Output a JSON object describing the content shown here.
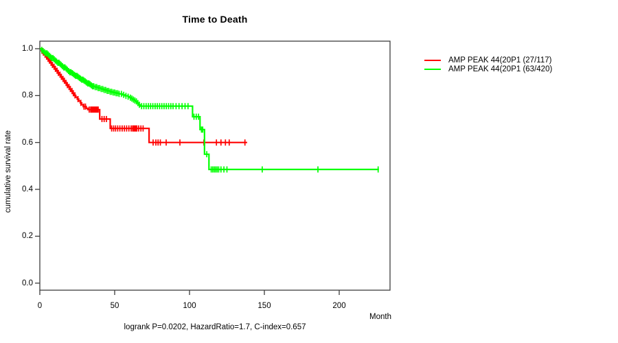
{
  "title": "Time to Death",
  "caption": "logrank P=0.0202, HazardRatio=1.7, C-index=0.657",
  "axes": {
    "x_label": "Month",
    "y_label": "cumulative survival rate",
    "x_ticks": [
      "0",
      "50",
      "100",
      "150",
      "200"
    ],
    "y_ticks": [
      "0.0",
      "0.2",
      "0.4",
      "0.6",
      "0.8",
      "1.0"
    ]
  },
  "legend": [
    {
      "label": "AMP PEAK 44(20P1 (27/117)",
      "color": "#FF0000"
    },
    {
      "label": "AMP PEAK 44(20P1 (63/420)",
      "color": "#00FF00"
    }
  ],
  "colors": {
    "red_curve": "#FF0000",
    "green_curve": "#00FF00",
    "axis": "#3c3c3c",
    "text": "#000000",
    "background": "#FFFFFF"
  },
  "chart_data": {
    "type": "line",
    "subtype": "kaplan-meier-step",
    "title": "Time to Death",
    "xlabel": "Month",
    "ylabel": "cumulative survival rate",
    "xlim": [
      0,
      234
    ],
    "ylim": [
      0,
      1.03
    ],
    "grid": false,
    "legend_position": "right-outside",
    "series": [
      {
        "name": "AMP PEAK 44(20P1 (27/117)",
        "color": "#FF0000",
        "end_month": 138.5,
        "steps": [
          [
            0,
            1.0
          ],
          [
            1,
            0.991
          ],
          [
            2,
            0.983
          ],
          [
            3,
            0.974
          ],
          [
            4,
            0.966
          ],
          [
            5,
            0.957
          ],
          [
            6,
            0.949
          ],
          [
            7,
            0.94
          ],
          [
            8,
            0.931
          ],
          [
            9,
            0.923
          ],
          [
            10,
            0.914
          ],
          [
            11,
            0.906
          ],
          [
            12,
            0.897
          ],
          [
            13,
            0.889
          ],
          [
            14,
            0.88
          ],
          [
            15,
            0.871
          ],
          [
            16,
            0.863
          ],
          [
            17,
            0.854
          ],
          [
            18,
            0.845
          ],
          [
            19,
            0.837
          ],
          [
            20,
            0.828
          ],
          [
            21,
            0.819
          ],
          [
            22,
            0.81
          ],
          [
            23,
            0.801
          ],
          [
            24,
            0.793
          ],
          [
            25,
            0.785
          ],
          [
            26,
            0.777
          ],
          [
            27,
            0.769
          ],
          [
            28,
            0.761
          ],
          [
            29,
            0.753
          ],
          [
            31,
            0.746
          ],
          [
            32,
            0.74
          ],
          [
            40,
            0.7
          ],
          [
            47,
            0.66
          ],
          [
            73,
            0.6
          ]
        ],
        "censor_months": [
          1.4,
          2.4,
          3.5,
          4.5,
          5.5,
          6.4,
          7.5,
          8.4,
          9.5,
          10.4,
          11.5,
          12.4,
          13.5,
          14.4,
          15.5,
          16.4,
          17.5,
          18.4,
          19.5,
          20.4,
          21.5,
          22.4,
          23.5,
          25.5,
          27.4,
          29.5,
          30.5,
          33,
          34,
          34.7,
          35.4,
          36.1,
          36.8,
          37.5,
          38.3,
          39,
          41.5,
          43,
          44.5,
          48,
          49.3,
          50.6,
          52,
          53.5,
          55,
          56.5,
          58,
          59.5,
          61,
          62,
          62.7,
          63.4,
          64.1,
          64.8,
          66,
          67.5,
          69,
          75.7,
          77.5,
          79,
          80.5,
          84.4,
          93.6,
          109.6,
          118,
          121,
          124,
          126.5,
          137
        ]
      },
      {
        "name": "AMP PEAK 44(20P1 (63/420)",
        "color": "#00FF00",
        "end_month": 226.5,
        "steps": [
          [
            0,
            1.0
          ],
          [
            1,
            0.995
          ],
          [
            2,
            0.99
          ],
          [
            3,
            0.985
          ],
          [
            4,
            0.98
          ],
          [
            5,
            0.975
          ],
          [
            6,
            0.97
          ],
          [
            7,
            0.965
          ],
          [
            8,
            0.96
          ],
          [
            9,
            0.955
          ],
          [
            10,
            0.95
          ],
          [
            11,
            0.945
          ],
          [
            12,
            0.94
          ],
          [
            13,
            0.935
          ],
          [
            14,
            0.93
          ],
          [
            15,
            0.925
          ],
          [
            16,
            0.92
          ],
          [
            17,
            0.915
          ],
          [
            18,
            0.91
          ],
          [
            19,
            0.905
          ],
          [
            20,
            0.9
          ],
          [
            21,
            0.896
          ],
          [
            22,
            0.892
          ],
          [
            23,
            0.888
          ],
          [
            24,
            0.884
          ],
          [
            25,
            0.88
          ],
          [
            26,
            0.876
          ],
          [
            27,
            0.872
          ],
          [
            28,
            0.868
          ],
          [
            29,
            0.864
          ],
          [
            30,
            0.86
          ],
          [
            31,
            0.856
          ],
          [
            32,
            0.852
          ],
          [
            33,
            0.848
          ],
          [
            34,
            0.844
          ],
          [
            35,
            0.84
          ],
          [
            37,
            0.836
          ],
          [
            39,
            0.832
          ],
          [
            41,
            0.828
          ],
          [
            43,
            0.824
          ],
          [
            45,
            0.82
          ],
          [
            47,
            0.816
          ],
          [
            49,
            0.813
          ],
          [
            51,
            0.81
          ],
          [
            53,
            0.807
          ],
          [
            55,
            0.803
          ],
          [
            57,
            0.799
          ],
          [
            59,
            0.795
          ],
          [
            60,
            0.791
          ],
          [
            61,
            0.787
          ],
          [
            62,
            0.783
          ],
          [
            63,
            0.779
          ],
          [
            64,
            0.775
          ],
          [
            65,
            0.768
          ],
          [
            66,
            0.761
          ],
          [
            67,
            0.755
          ],
          [
            102,
            0.71
          ],
          [
            107,
            0.655
          ],
          [
            110,
            0.55
          ],
          [
            113,
            0.485
          ]
        ],
        "censor_months": [
          1.3,
          2.2,
          3.1,
          4,
          4.8,
          5.6,
          6.4,
          7.2,
          8,
          8.8,
          9.6,
          10.4,
          11.2,
          12,
          12.8,
          13.6,
          14.4,
          15.2,
          16,
          16.8,
          17.6,
          18.4,
          19.2,
          20,
          20.8,
          21.6,
          22.4,
          23.2,
          24,
          24.8,
          25.6,
          26.4,
          27.2,
          28,
          28.8,
          29.6,
          30.4,
          31.2,
          32,
          32.8,
          33.6,
          34.4,
          35.2,
          36,
          37,
          38,
          39,
          40,
          41,
          42,
          43,
          44,
          45,
          46,
          47,
          48,
          49,
          50,
          51,
          52,
          53,
          54.5,
          56,
          57.5,
          59,
          60.5,
          61.5,
          62.5,
          63.5,
          64.5,
          65.5,
          66.5,
          68,
          69.5,
          71,
          72.5,
          74,
          75.5,
          77,
          78.5,
          80,
          81.5,
          83,
          84.5,
          86,
          87.5,
          89,
          91,
          93,
          95,
          97,
          99,
          103,
          104.5,
          106,
          108,
          108.8,
          111.5,
          114.5,
          115.5,
          116.5,
          117.5,
          118.5,
          119.5,
          121,
          123,
          125,
          148.6,
          185.8,
          226
        ]
      }
    ]
  }
}
